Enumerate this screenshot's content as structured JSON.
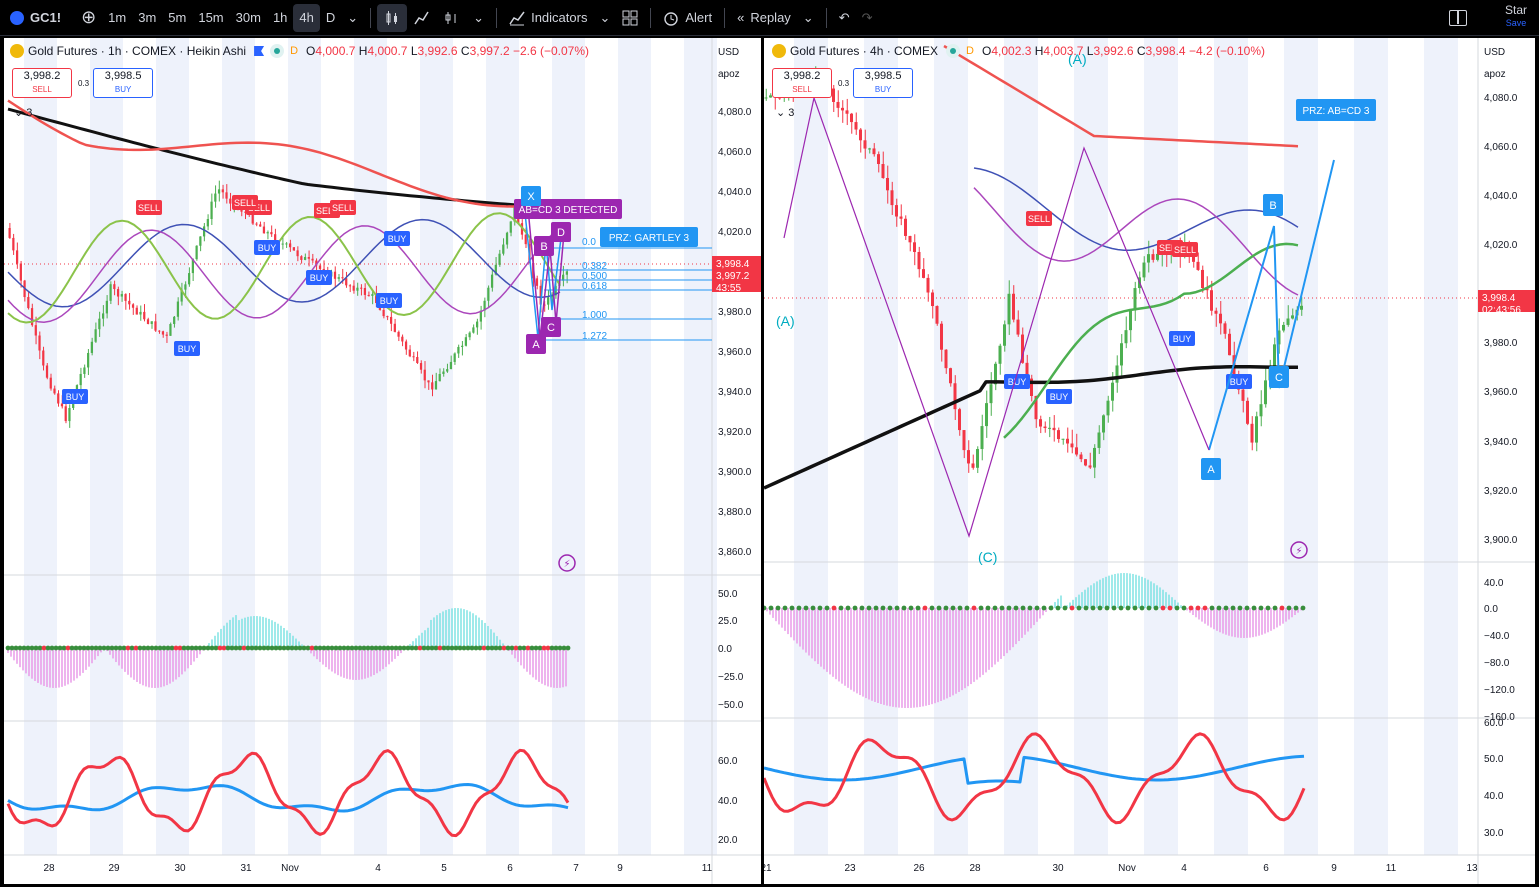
{
  "toolbar": {
    "symbol": "GC1!",
    "intervals": [
      "1m",
      "3m",
      "5m",
      "15m",
      "30m",
      "1h",
      "4h",
      "D"
    ],
    "active_interval": "4h",
    "indicators_label": "Indicators",
    "alert_label": "Alert",
    "replay_label": "Replay",
    "star_label": "Star",
    "save_label": "Save"
  },
  "left_chart": {
    "title": "Gold Futures · 1h · COMEX · Heikin Ashi",
    "ohlc": {
      "o": "4,000.7",
      "h": "4,000.7",
      "l": "3,992.6",
      "c": "3,997.2",
      "chg": "−2.6 (−0.07%)"
    },
    "sell_price": "3,998.2",
    "sell_label": "SELL",
    "buy_price": "3,998.5",
    "buy_label": "BUY",
    "spread": "0.3",
    "indicators_count": "3",
    "currency": "USD",
    "scale_label": "apoz",
    "price_ticks": [
      "4,080.0",
      "4,060.0",
      "4,040.0",
      "4,020.0",
      "3,980.0",
      "3,960.0",
      "3,940.0",
      "3,920.0",
      "3,900.0",
      "3,880.0",
      "3,860.0"
    ],
    "last_price": "3,998.4",
    "last_price2": "3,997.2",
    "countdown": "43:55",
    "osc_ticks": [
      "50.0",
      "25.0",
      "0.0",
      "−25.0",
      "−50.0"
    ],
    "rsi_ticks": [
      "60.0",
      "40.0",
      "20.0"
    ],
    "time_ticks": [
      "28",
      "29",
      "30",
      "31",
      "Nov",
      "4",
      "5",
      "6",
      "7",
      "9",
      "11"
    ],
    "pattern_label": "AB=CD 3 DETECTED",
    "prz_label": "PRZ: GARTLEY 3",
    "fib_levels": [
      "0.382",
      "0.500",
      "0.618",
      "1.000",
      "1.272"
    ],
    "fib_top": "0.0",
    "points": [
      "X",
      "A",
      "B",
      "C",
      "D"
    ],
    "signals": [
      "SELL",
      "SELL",
      "SELL",
      "SELL",
      "SELL",
      "BUY",
      "BUY",
      "BUY",
      "BUY",
      "BUY",
      "BUY"
    ]
  },
  "right_chart": {
    "title": "Gold Futures · 4h · COMEX",
    "ohlc": {
      "o": "4,002.3",
      "h": "4,003.7",
      "l": "3,992.6",
      "c": "3,998.4",
      "chg": "−4.2 (−0.10%)"
    },
    "sell_price": "3,998.2",
    "sell_label": "SELL",
    "buy_price": "3,998.5",
    "buy_label": "BUY",
    "spread": "0.3",
    "indicators_count": "3",
    "currency": "USD",
    "scale_label": "apoz",
    "price_ticks": [
      "4,080.0",
      "4,060.0",
      "4,040.0",
      "4,020.0",
      "3,980.0",
      "3,960.0",
      "3,940.0",
      "3,920.0",
      "3,900.0"
    ],
    "last_price": "3,998.4",
    "countdown": "02:43:56",
    "osc_ticks": [
      "40.0",
      "0.0",
      "−40.0",
      "−80.0",
      "−120.0",
      "−160.0"
    ],
    "rsi_ticks": [
      "60.0",
      "50.0",
      "40.0",
      "30.0"
    ],
    "time_ticks": [
      "21",
      "23",
      "26",
      "28",
      "30",
      "Nov",
      "4",
      "6",
      "9",
      "11",
      "13"
    ],
    "prz_label": "PRZ: AB=CD 3",
    "wave_a": "(A)",
    "wave_a2": "(A)",
    "wave_c": "(C)",
    "points": [
      "A",
      "B",
      "C"
    ],
    "signals": [
      "SELL",
      "SELL",
      "SELL",
      "BUY",
      "BUY",
      "BUY",
      "BUY"
    ]
  }
}
